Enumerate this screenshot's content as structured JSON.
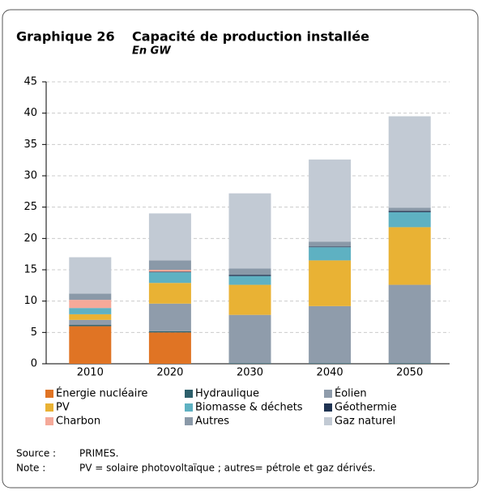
{
  "chart_data": {
    "type": "stacked_bar",
    "label": "Graphique 26",
    "title": "Capacité de production installée",
    "subtitle": "En GW",
    "categories": [
      "2010",
      "2020",
      "2030",
      "2040",
      "2050"
    ],
    "ylim": [
      0,
      45
    ],
    "yticks": [
      0,
      5,
      10,
      15,
      20,
      25,
      30,
      35,
      40,
      45
    ],
    "grid": true,
    "series": [
      {
        "name": "Énergie nucléaire",
        "color": "#e07424",
        "values": [
          6,
          5,
          0,
          0,
          0
        ]
      },
      {
        "name": "Hydraulique",
        "color": "#2d5f6b",
        "values": [
          0.2,
          0.2,
          0.1,
          0.1,
          0.1
        ]
      },
      {
        "name": "Éolien",
        "color": "#8f9cab",
        "values": [
          0.8,
          4.4,
          7.7,
          9.1,
          12.5
        ]
      },
      {
        "name": "PV",
        "color": "#e9b234",
        "values": [
          0.9,
          3.3,
          4.8,
          7.3,
          9.2
        ]
      },
      {
        "name": "Biomasse & déchets",
        "color": "#5eb1c2",
        "values": [
          1.0,
          1.7,
          1.4,
          2.1,
          2.4
        ]
      },
      {
        "name": "Géothermie",
        "color": "#1f3352",
        "values": [
          0,
          0.1,
          0.2,
          0.1,
          0.2
        ]
      },
      {
        "name": "Charbon",
        "color": "#f5a999",
        "values": [
          1.3,
          0.3,
          0,
          0,
          0
        ]
      },
      {
        "name": "Autres",
        "color": "#8a99a8",
        "values": [
          1.0,
          1.5,
          1.0,
          0.8,
          0.5
        ]
      },
      {
        "name": "Gaz naturel",
        "color": "#c2cad4",
        "values": [
          5.8,
          7.5,
          12.0,
          13.1,
          14.6
        ]
      }
    ],
    "source_label": "Source :",
    "source": "PRIMES.",
    "note_label": "Note :",
    "note": "PV = solaire photovoltaïque ; autres= pétrole et gaz dérivés."
  }
}
